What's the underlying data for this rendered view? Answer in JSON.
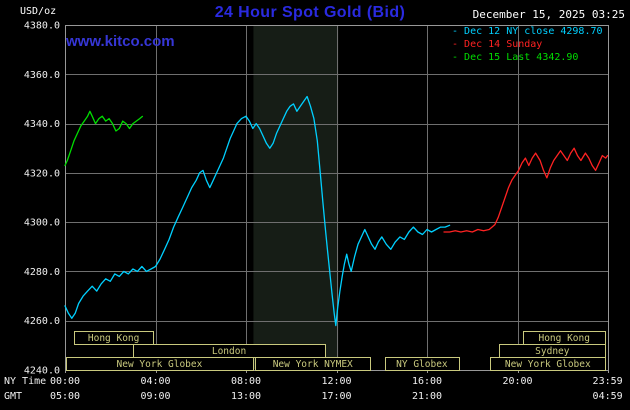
{
  "header": {
    "units_label": "USD/oz",
    "title": "24 Hour Spot Gold (Bid)",
    "datetime": "December 15, 2025 03:25",
    "site_link": "www.kitco.com"
  },
  "legend": {
    "marker": "-",
    "items": [
      {
        "label": "Dec 12 NY close 4298.70",
        "color": "#00d0ff"
      },
      {
        "label": "Dec 14 Sunday",
        "color": "#ff2222"
      },
      {
        "label": "Dec 15 Last 4342.90",
        "color": "#00dd00"
      }
    ]
  },
  "axes": {
    "ny_time_label": "NY Time",
    "gmt_label": "GMT"
  },
  "chart_data": {
    "type": "line",
    "title": "24 Hour Spot Gold (Bid)",
    "ylabel": "USD/oz",
    "ylim": [
      4240,
      4380
    ],
    "xlim_hours": [
      0,
      24
    ],
    "grid": true,
    "legend_position": "top-right",
    "y_ticks": [
      4240,
      4260,
      4280,
      4300,
      4320,
      4340,
      4360,
      4380
    ],
    "x_ticks": [
      {
        "hour": 0,
        "ny": "00:00",
        "gmt": "05:00"
      },
      {
        "hour": 4,
        "ny": "04:00",
        "gmt": "09:00"
      },
      {
        "hour": 8,
        "ny": "08:00",
        "gmt": "13:00"
      },
      {
        "hour": 12,
        "ny": "12:00",
        "gmt": "17:00"
      },
      {
        "hour": 16,
        "ny": "16:00",
        "gmt": "21:00"
      },
      {
        "hour": 20,
        "ny": "20:00",
        "gmt": ""
      },
      {
        "hour": 23.983,
        "ny": "23:59",
        "gmt": "04:59"
      }
    ],
    "colors": {
      "background": "#000000",
      "grid": "#6f6f6f",
      "frame": "#989898",
      "axis_text": "#f0f0f0",
      "band": "#161d16",
      "session": "#c9c97e"
    },
    "highlight_band_hours": [
      8.33,
      12.08
    ],
    "sessions": [
      {
        "label": "Hong Kong",
        "row": 0,
        "start": 0.4,
        "end": 3.9
      },
      {
        "label": "Hong Kong",
        "row": 0,
        "start": 20.25,
        "end": 23.88
      },
      {
        "label": "London",
        "row": 1,
        "start": 3.0,
        "end": 11.5
      },
      {
        "label": "Sydney",
        "row": 1,
        "start": 19.2,
        "end": 23.88
      },
      {
        "label": "New York Globex",
        "row": 2,
        "start": 0.05,
        "end": 8.3
      },
      {
        "label": "New York NYMEX",
        "row": 2,
        "start": 8.4,
        "end": 13.5
      },
      {
        "label": "NY Globex",
        "row": 2,
        "start": 14.15,
        "end": 17.4
      },
      {
        "label": "New York Globex",
        "row": 2,
        "start": 18.8,
        "end": 23.88
      }
    ],
    "series": [
      {
        "name": "Dec 12 NY close",
        "color": "#00d0ff",
        "close": 4298.7,
        "points": [
          [
            0.0,
            4266
          ],
          [
            0.15,
            4263
          ],
          [
            0.3,
            4261
          ],
          [
            0.45,
            4263
          ],
          [
            0.6,
            4267
          ],
          [
            0.8,
            4270
          ],
          [
            1.0,
            4272
          ],
          [
            1.2,
            4274
          ],
          [
            1.4,
            4272
          ],
          [
            1.6,
            4275
          ],
          [
            1.8,
            4277
          ],
          [
            2.0,
            4276
          ],
          [
            2.2,
            4279
          ],
          [
            2.4,
            4278
          ],
          [
            2.6,
            4280
          ],
          [
            2.8,
            4279
          ],
          [
            3.0,
            4281
          ],
          [
            3.2,
            4280
          ],
          [
            3.4,
            4282
          ],
          [
            3.6,
            4280
          ],
          [
            3.8,
            4281
          ],
          [
            4.0,
            4282
          ],
          [
            4.2,
            4285
          ],
          [
            4.4,
            4289
          ],
          [
            4.6,
            4293
          ],
          [
            4.8,
            4298
          ],
          [
            5.0,
            4302
          ],
          [
            5.2,
            4306
          ],
          [
            5.4,
            4310
          ],
          [
            5.6,
            4314
          ],
          [
            5.8,
            4317
          ],
          [
            5.95,
            4320
          ],
          [
            6.1,
            4321
          ],
          [
            6.25,
            4317
          ],
          [
            6.4,
            4314
          ],
          [
            6.55,
            4317
          ],
          [
            6.7,
            4320
          ],
          [
            6.85,
            4323
          ],
          [
            7.0,
            4326
          ],
          [
            7.15,
            4330
          ],
          [
            7.3,
            4334
          ],
          [
            7.45,
            4337
          ],
          [
            7.6,
            4340
          ],
          [
            7.8,
            4342
          ],
          [
            8.0,
            4343
          ],
          [
            8.15,
            4341
          ],
          [
            8.3,
            4338
          ],
          [
            8.45,
            4340
          ],
          [
            8.6,
            4338
          ],
          [
            8.75,
            4335
          ],
          [
            8.9,
            4332
          ],
          [
            9.05,
            4330
          ],
          [
            9.2,
            4332
          ],
          [
            9.35,
            4336
          ],
          [
            9.5,
            4339
          ],
          [
            9.65,
            4342
          ],
          [
            9.8,
            4345
          ],
          [
            9.95,
            4347
          ],
          [
            10.1,
            4348
          ],
          [
            10.25,
            4345
          ],
          [
            10.4,
            4347
          ],
          [
            10.55,
            4349
          ],
          [
            10.7,
            4351
          ],
          [
            10.85,
            4347
          ],
          [
            11.0,
            4342
          ],
          [
            11.15,
            4333
          ],
          [
            11.3,
            4318
          ],
          [
            11.4,
            4308
          ],
          [
            11.5,
            4298
          ],
          [
            11.6,
            4289
          ],
          [
            11.7,
            4280
          ],
          [
            11.8,
            4271
          ],
          [
            11.9,
            4263
          ],
          [
            11.97,
            4258
          ],
          [
            12.05,
            4265
          ],
          [
            12.15,
            4272
          ],
          [
            12.25,
            4278
          ],
          [
            12.35,
            4283
          ],
          [
            12.45,
            4287
          ],
          [
            12.55,
            4283
          ],
          [
            12.65,
            4280
          ],
          [
            12.8,
            4286
          ],
          [
            12.95,
            4291
          ],
          [
            13.1,
            4294
          ],
          [
            13.25,
            4297
          ],
          [
            13.4,
            4294
          ],
          [
            13.55,
            4291
          ],
          [
            13.7,
            4289
          ],
          [
            13.85,
            4292
          ],
          [
            14.0,
            4294
          ],
          [
            14.2,
            4291
          ],
          [
            14.4,
            4289
          ],
          [
            14.6,
            4292
          ],
          [
            14.8,
            4294
          ],
          [
            15.0,
            4293
          ],
          [
            15.2,
            4296
          ],
          [
            15.4,
            4298
          ],
          [
            15.6,
            4296
          ],
          [
            15.8,
            4295
          ],
          [
            16.0,
            4297
          ],
          [
            16.2,
            4296
          ],
          [
            16.4,
            4297
          ],
          [
            16.6,
            4298
          ],
          [
            16.8,
            4298
          ],
          [
            17.0,
            4298.7
          ]
        ]
      },
      {
        "name": "Dec 14 Sunday",
        "color": "#ff2222",
        "points": [
          [
            16.75,
            4296
          ],
          [
            17.0,
            4296
          ],
          [
            17.25,
            4296.5
          ],
          [
            17.5,
            4296
          ],
          [
            17.75,
            4296.5
          ],
          [
            18.0,
            4296
          ],
          [
            18.25,
            4297
          ],
          [
            18.5,
            4296.5
          ],
          [
            18.75,
            4297
          ],
          [
            19.0,
            4299
          ],
          [
            19.15,
            4302
          ],
          [
            19.3,
            4306
          ],
          [
            19.45,
            4310
          ],
          [
            19.6,
            4314
          ],
          [
            19.75,
            4317
          ],
          [
            19.9,
            4319
          ],
          [
            20.05,
            4321
          ],
          [
            20.2,
            4324
          ],
          [
            20.35,
            4326
          ],
          [
            20.5,
            4323
          ],
          [
            20.65,
            4326
          ],
          [
            20.8,
            4328
          ],
          [
            21.0,
            4325
          ],
          [
            21.15,
            4321
          ],
          [
            21.3,
            4318
          ],
          [
            21.45,
            4322
          ],
          [
            21.6,
            4325
          ],
          [
            21.75,
            4327
          ],
          [
            21.9,
            4329
          ],
          [
            22.05,
            4327
          ],
          [
            22.2,
            4325
          ],
          [
            22.35,
            4328
          ],
          [
            22.5,
            4330
          ],
          [
            22.65,
            4327
          ],
          [
            22.8,
            4325
          ],
          [
            23.0,
            4328
          ],
          [
            23.15,
            4326
          ],
          [
            23.3,
            4323
          ],
          [
            23.45,
            4321
          ],
          [
            23.6,
            4324
          ],
          [
            23.75,
            4327
          ],
          [
            23.9,
            4326
          ],
          [
            23.98,
            4327
          ]
        ]
      },
      {
        "name": "Dec 15 Last",
        "color": "#00dd00",
        "last": 4342.9,
        "points": [
          [
            0.0,
            4323
          ],
          [
            0.1,
            4325
          ],
          [
            0.25,
            4329
          ],
          [
            0.4,
            4333
          ],
          [
            0.55,
            4336
          ],
          [
            0.7,
            4339
          ],
          [
            0.85,
            4341
          ],
          [
            1.0,
            4343
          ],
          [
            1.1,
            4345
          ],
          [
            1.2,
            4343
          ],
          [
            1.35,
            4340
          ],
          [
            1.5,
            4342
          ],
          [
            1.65,
            4343
          ],
          [
            1.8,
            4341
          ],
          [
            1.95,
            4342
          ],
          [
            2.1,
            4340
          ],
          [
            2.25,
            4337
          ],
          [
            2.4,
            4338
          ],
          [
            2.55,
            4341
          ],
          [
            2.7,
            4340
          ],
          [
            2.85,
            4338
          ],
          [
            3.0,
            4340
          ],
          [
            3.15,
            4341
          ],
          [
            3.3,
            4342
          ],
          [
            3.42,
            4342.9
          ]
        ]
      }
    ]
  }
}
